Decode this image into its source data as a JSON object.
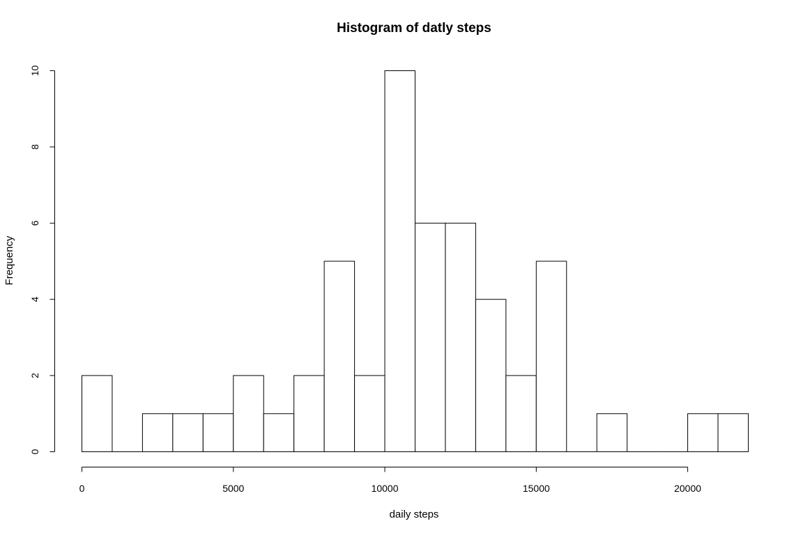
{
  "chart_data": {
    "type": "bar",
    "title": "Histogram of datly steps",
    "xlabel": "daily steps",
    "ylabel": "Frequency",
    "bin_width": 1000,
    "bins_start": [
      0,
      1000,
      2000,
      3000,
      4000,
      5000,
      6000,
      7000,
      8000,
      9000,
      10000,
      11000,
      12000,
      13000,
      14000,
      15000,
      16000,
      17000,
      18000,
      19000,
      20000,
      21000
    ],
    "values": [
      2,
      0,
      1,
      1,
      1,
      2,
      1,
      2,
      5,
      2,
      10,
      6,
      6,
      4,
      2,
      5,
      0,
      1,
      0,
      0,
      1,
      1
    ],
    "xlim": [
      0,
      22000
    ],
    "ylim": [
      0,
      10
    ],
    "x_ticks": [
      0,
      5000,
      10000,
      15000,
      20000
    ],
    "x_tick_labels": [
      "0",
      "5000",
      "10000",
      "15000",
      "20000"
    ],
    "y_ticks": [
      0,
      2,
      4,
      6,
      8,
      10
    ],
    "y_tick_labels": [
      "0",
      "2",
      "4",
      "6",
      "8",
      "10"
    ],
    "grid": false,
    "legend": "none"
  }
}
